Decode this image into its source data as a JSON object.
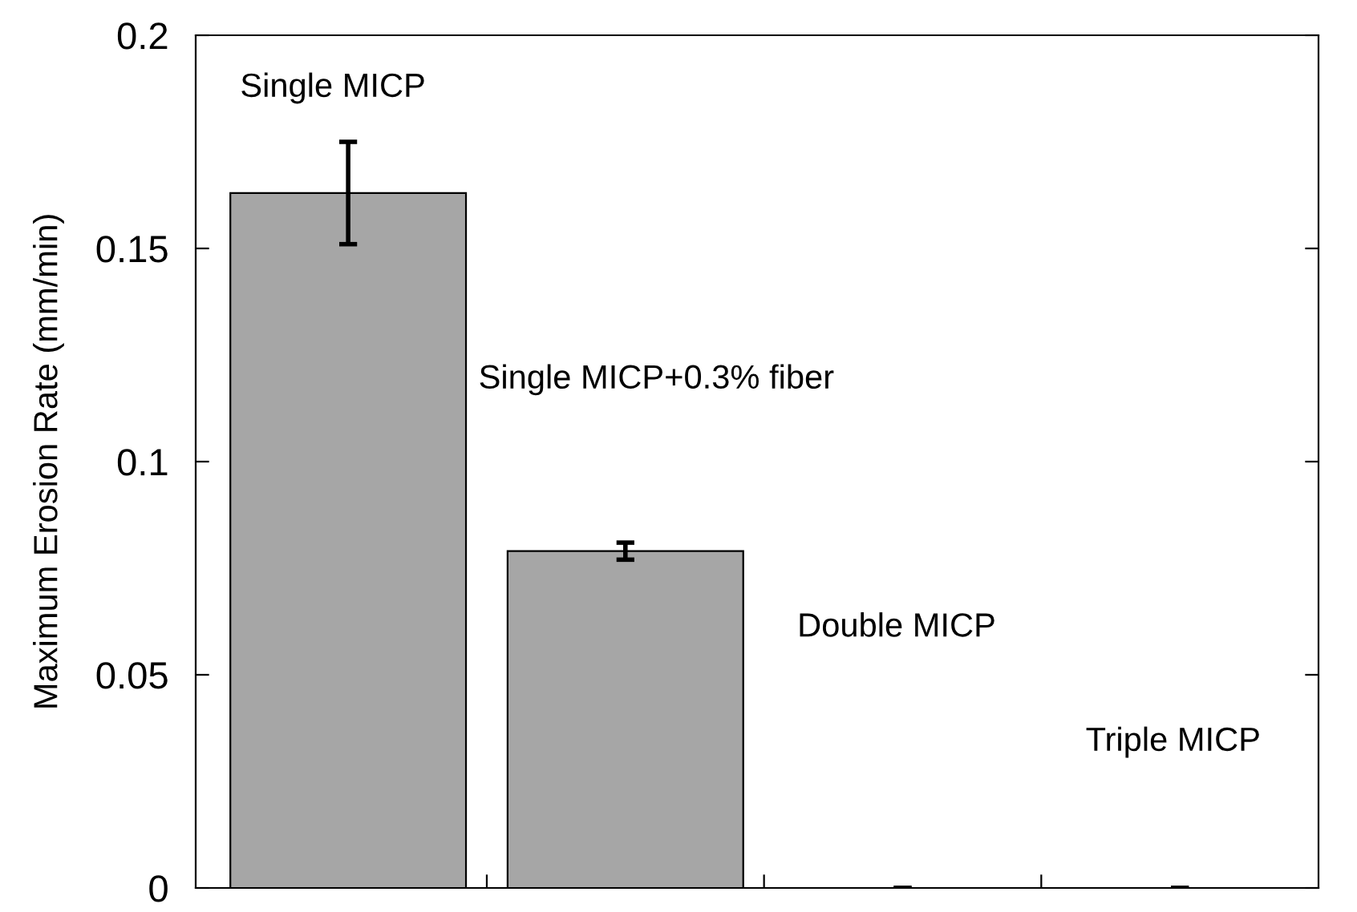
{
  "chart_data": {
    "type": "bar",
    "ylabel": "Maximum Erosion Rate (mm/min)",
    "categories": [
      null,
      null,
      null,
      null
    ],
    "annotations": [
      "Single MICP",
      "Single MICP+0.3% fiber",
      "Double MICP",
      "Triple MICP"
    ],
    "values": [
      0.163,
      0.079,
      0,
      0
    ],
    "color": "#a6a6a6",
    "errors": [
      [
        0.151,
        0.175
      ],
      [
        0.077,
        0.081
      ],
      0,
      0
    ],
    "ylim": [
      0,
      0.2
    ],
    "yticks": [
      0,
      0.05,
      0.1,
      0.15,
      0.2
    ],
    "grid": false
  }
}
